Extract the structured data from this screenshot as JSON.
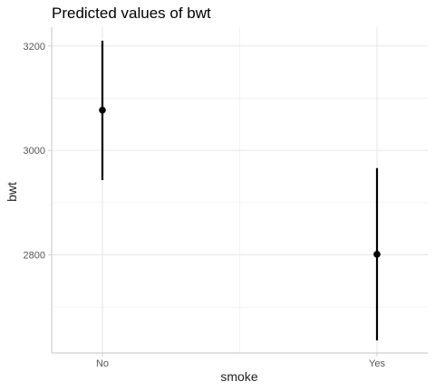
{
  "chart_data": {
    "type": "scatter",
    "title": "Predicted values of bwt",
    "xlabel": "smoke",
    "ylabel": "bwt",
    "categories": [
      "No",
      "Yes"
    ],
    "series": [
      {
        "values": [
          3077,
          2801
        ],
        "lower": [
          2943,
          2636
        ],
        "upper": [
          3210,
          2966
        ]
      }
    ],
    "yticks": [
      2800,
      3000,
      3200
    ],
    "ylim": [
      2612,
      3236
    ],
    "grid": true,
    "legend": "none"
  }
}
